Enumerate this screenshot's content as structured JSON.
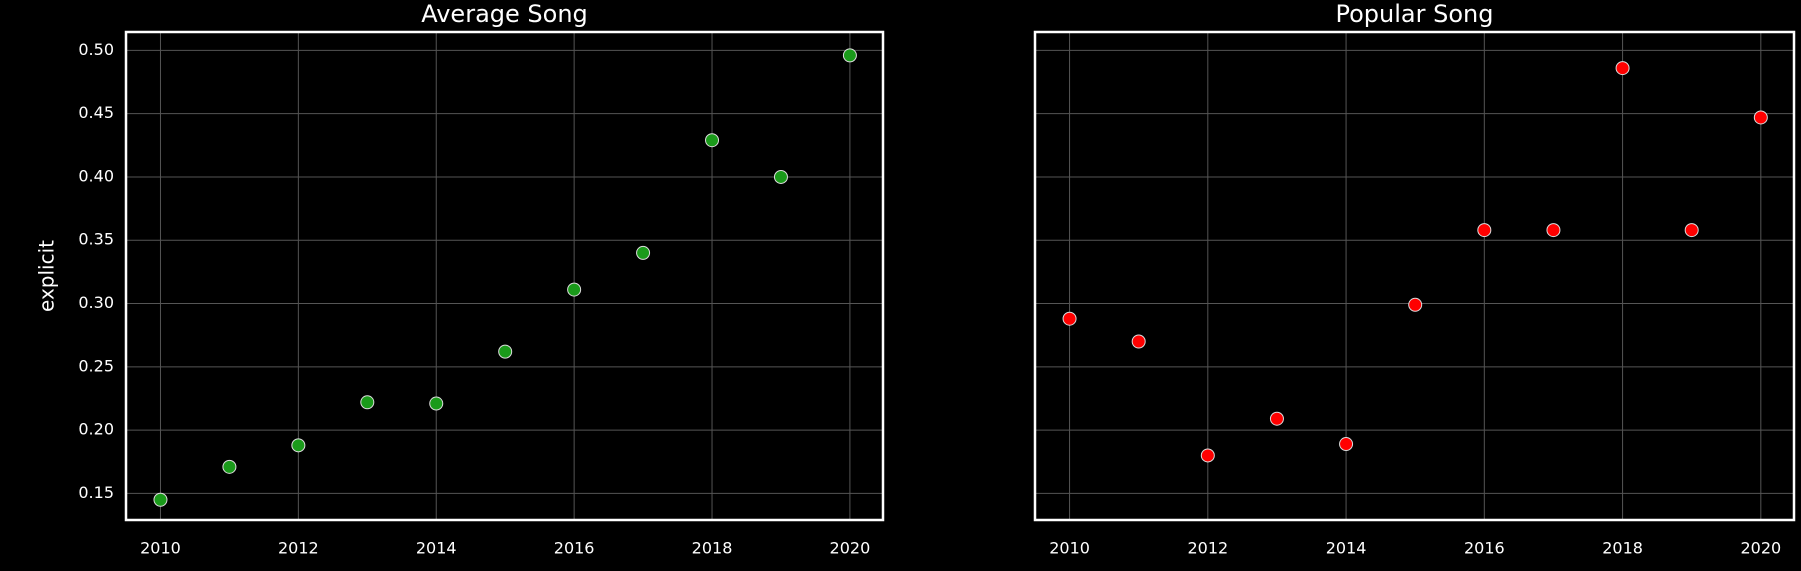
{
  "chart_data": [
    {
      "type": "scatter",
      "title": "Average Song",
      "y_label": "explicit",
      "x": [
        2010,
        2011,
        2012,
        2013,
        2014,
        2015,
        2016,
        2017,
        2018,
        2019,
        2020
      ],
      "values": [
        0.145,
        0.171,
        0.188,
        0.222,
        0.221,
        0.262,
        0.311,
        0.34,
        0.429,
        0.4,
        0.496
      ],
      "color": "#1a9a1a",
      "xlim": [
        2009.5,
        2020.48
      ],
      "ylim": [
        0.129,
        0.5145
      ],
      "xticks": [
        2010,
        2012,
        2014,
        2016,
        2018,
        2020
      ],
      "yticks": [
        0.15,
        {
          "value": 0.2,
          "label": "0.20"
        },
        0.25,
        {
          "value": 0.3,
          "label": "0.30"
        },
        0.35,
        {
          "value": 0.4,
          "label": "0.40"
        },
        0.45,
        {
          "value": 0.5,
          "label": "0.50"
        }
      ],
      "grid": true
    },
    {
      "type": "scatter",
      "title": "Popular Song",
      "x": [
        2010,
        2011,
        2012,
        2013,
        2014,
        2015,
        2016,
        2017,
        2018,
        2019,
        2020
      ],
      "values": [
        0.288,
        0.27,
        0.18,
        0.209,
        0.189,
        0.299,
        0.358,
        0.358,
        0.486,
        0.358,
        0.447
      ],
      "color": "#ff0000",
      "xlim": [
        2009.5,
        2020.48
      ],
      "ylim": [
        0.129,
        0.5145
      ],
      "xticks": [
        2010,
        2012,
        2014,
        2016,
        2018,
        2020
      ],
      "yticks": [
        0.15,
        0.2,
        0.25,
        0.3,
        0.35,
        0.4,
        0.45,
        0.5
      ],
      "grid": true
    }
  ]
}
